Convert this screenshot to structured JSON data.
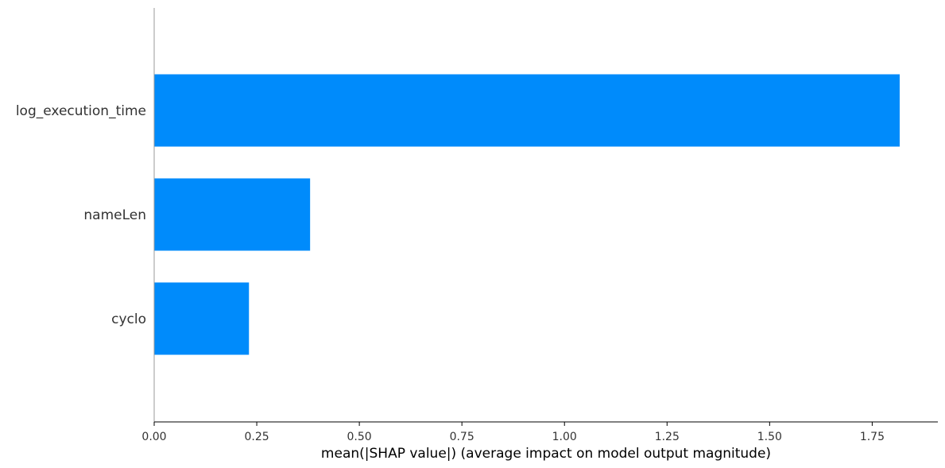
{
  "chart_data": {
    "type": "bar",
    "orientation": "horizontal",
    "categories": [
      "log_execution_time",
      "nameLen",
      "cyclo"
    ],
    "values": [
      1.817,
      0.38,
      0.231
    ],
    "xlabel": "mean(|SHAP value|) (average impact on model output magnitude)",
    "ylabel": "",
    "xlim": [
      0,
      1.91
    ],
    "xticks": [
      0.0,
      0.25,
      0.5,
      0.75,
      1.0,
      1.25,
      1.5,
      1.75
    ],
    "xtick_labels": [
      "0.00",
      "0.25",
      "0.50",
      "0.75",
      "1.00",
      "1.25",
      "1.50",
      "1.75"
    ],
    "bar_color": "#008bfb",
    "grid": false,
    "legend": "none"
  }
}
